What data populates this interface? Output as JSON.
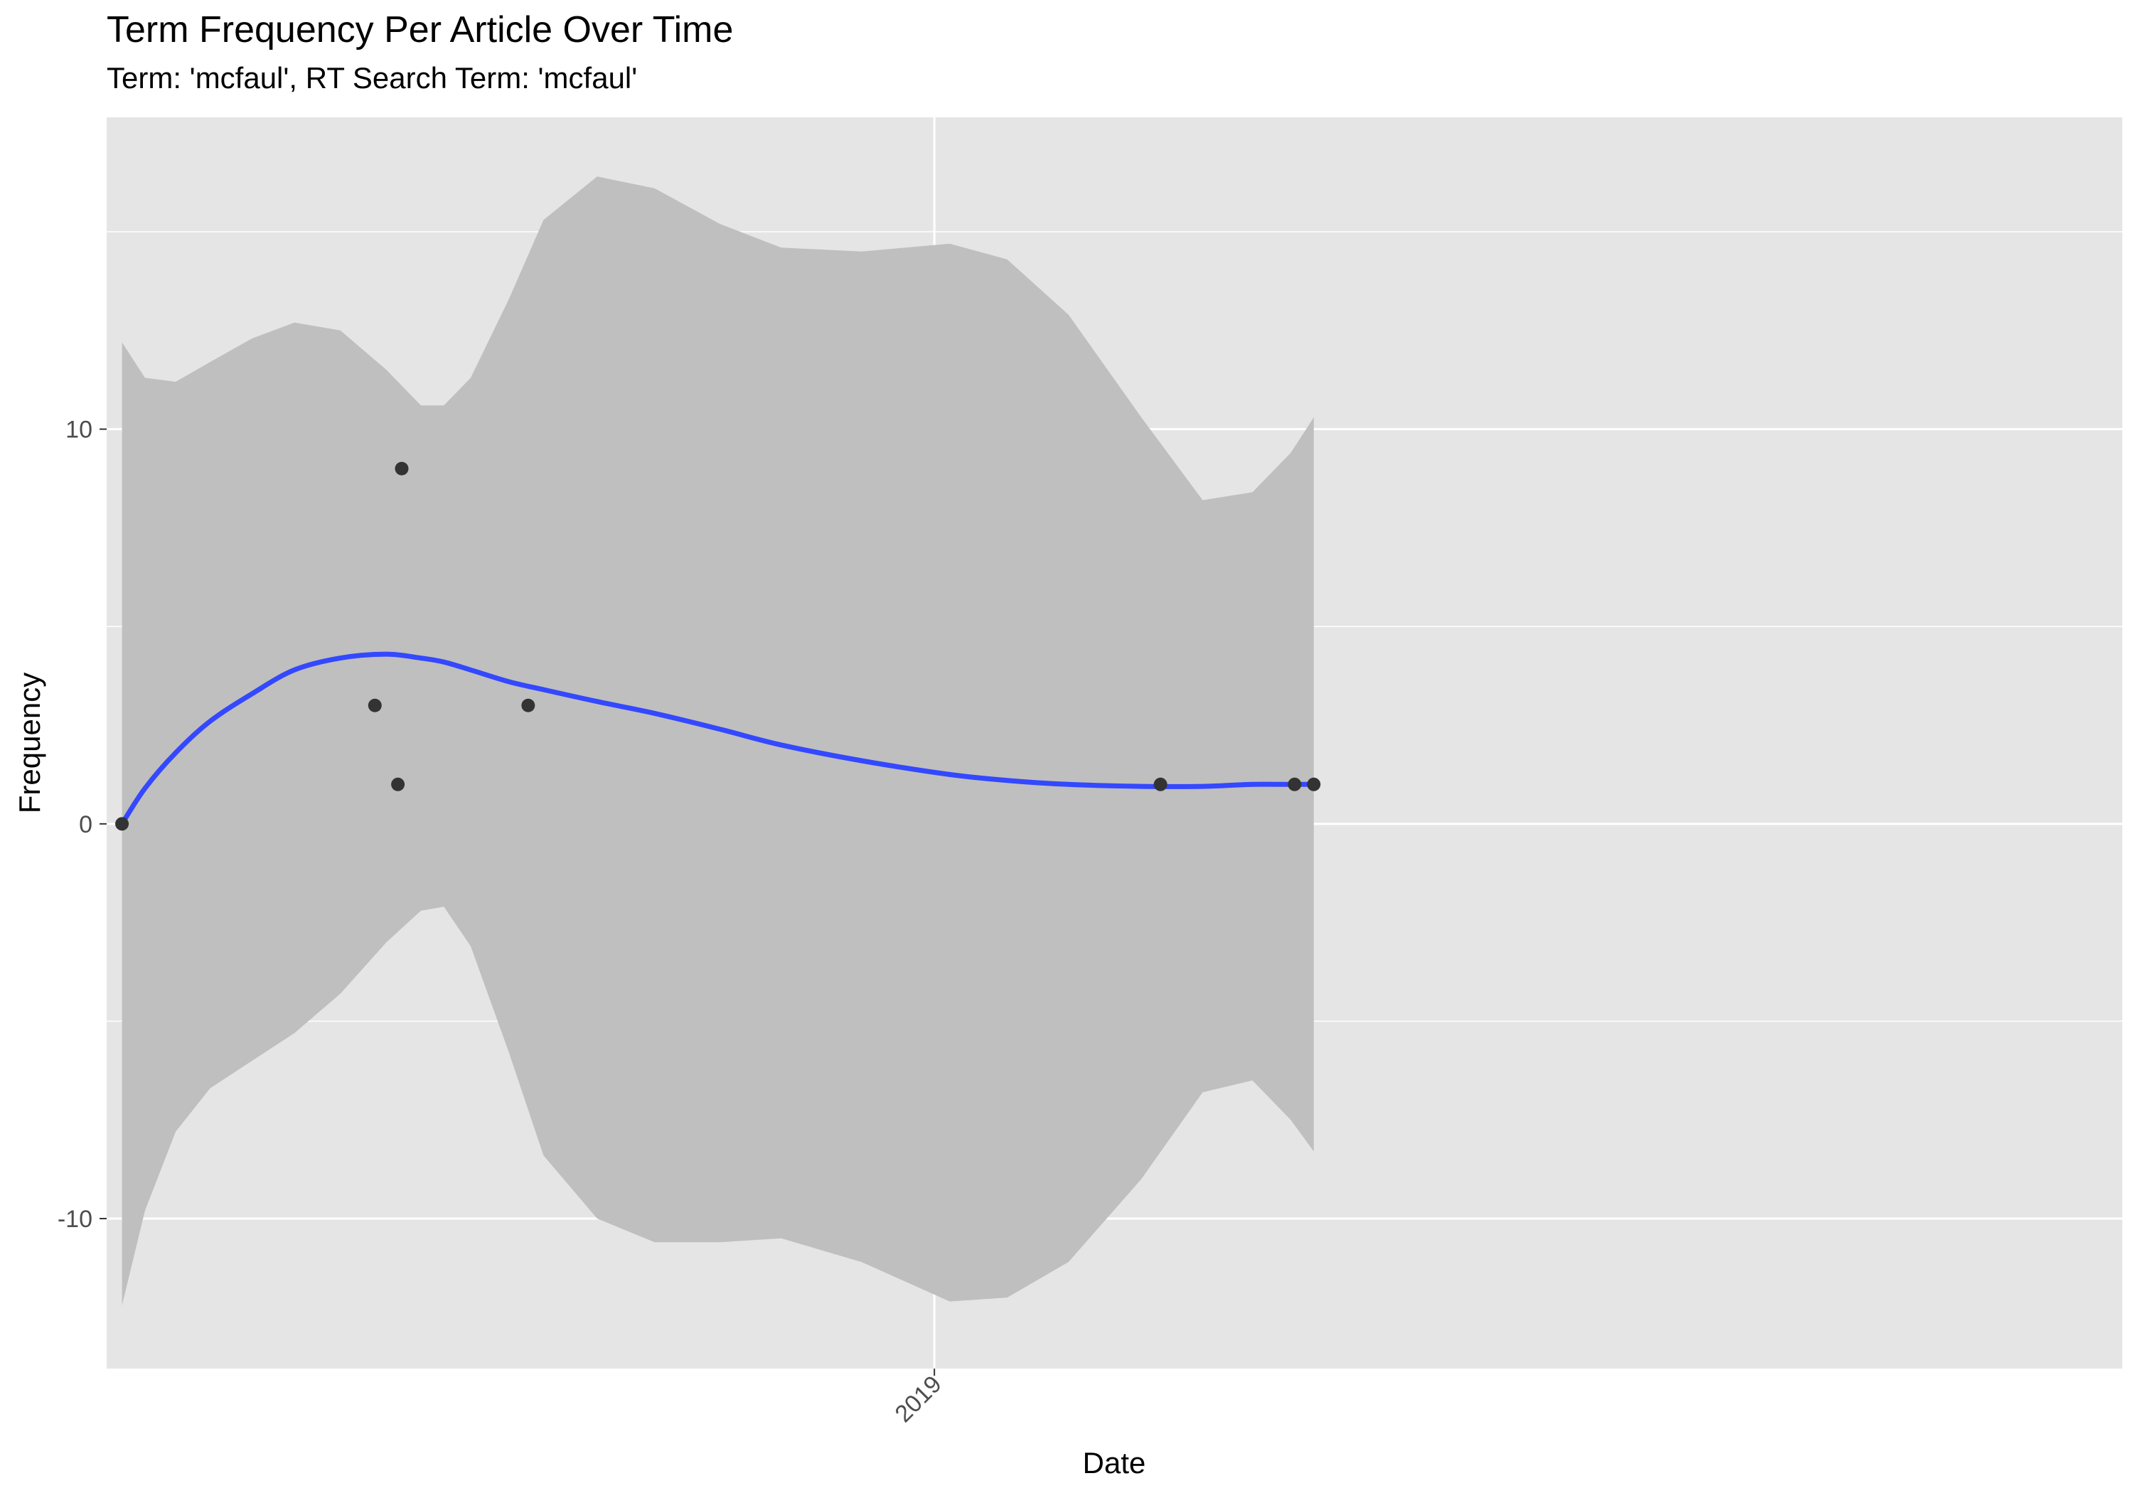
{
  "chart_data": {
    "type": "scatter",
    "title": "Term Frequency Per Article Over Time",
    "subtitle": "Term: 'mcfaul', RT Search Term: 'mcfaul'",
    "xlabel": "Date",
    "ylabel": "Frequency",
    "x_axis_type": "date",
    "x_ticks": [
      {
        "value": "2019-01-01",
        "label": "2019"
      }
    ],
    "y_ticks": [
      -10,
      0,
      10
    ],
    "y_minor_breaks": [
      -5,
      5,
      15
    ],
    "xlim": [
      "2018-05-30",
      "2019-11-07"
    ],
    "ylim": [
      -13.8,
      17.9
    ],
    "grid": true,
    "legend": "none",
    "colors": {
      "panel_background": "#e5e5e5",
      "grid": "#ffffff",
      "points": "#333333",
      "smooth_line": "#3348ff",
      "confidence_band": "#bfbfbf"
    },
    "points": [
      {
        "x": "2018-06-03",
        "y": 0
      },
      {
        "x": "2018-08-08",
        "y": 3
      },
      {
        "x": "2018-08-14",
        "y": 1
      },
      {
        "x": "2018-08-15",
        "y": 9
      },
      {
        "x": "2018-09-17",
        "y": 3
      },
      {
        "x": "2019-03-01",
        "y": 1
      },
      {
        "x": "2019-04-05",
        "y": 1
      },
      {
        "x": "2019-04-10",
        "y": 1
      }
    ],
    "smooth": {
      "method": "loess",
      "se": true,
      "curve": [
        {
          "x": "2018-06-03",
          "y": 0.0,
          "lower": -12.2,
          "upper": 12.2
        },
        {
          "x": "2018-06-09",
          "y": 0.9,
          "lower": -9.8,
          "upper": 11.3
        },
        {
          "x": "2018-06-17",
          "y": 1.8,
          "lower": -7.8,
          "upper": 11.2
        },
        {
          "x": "2018-06-26",
          "y": 2.6,
          "lower": -6.7,
          "upper": 11.7
        },
        {
          "x": "2018-07-07",
          "y": 3.3,
          "lower": -6.0,
          "upper": 12.3
        },
        {
          "x": "2018-07-18",
          "y": 3.9,
          "lower": -5.3,
          "upper": 12.7
        },
        {
          "x": "2018-07-30",
          "y": 4.2,
          "lower": -4.3,
          "upper": 12.5
        },
        {
          "x": "2018-08-11",
          "y": 4.3,
          "lower": -3.0,
          "upper": 11.5
        },
        {
          "x": "2018-08-20",
          "y": 4.2,
          "lower": -2.2,
          "upper": 10.6
        },
        {
          "x": "2018-08-26",
          "y": 4.1,
          "lower": -2.1,
          "upper": 10.6
        },
        {
          "x": "2018-09-02",
          "y": 3.9,
          "lower": -3.1,
          "upper": 11.3
        },
        {
          "x": "2018-09-12",
          "y": 3.6,
          "lower": -5.8,
          "upper": 13.3
        },
        {
          "x": "2018-09-21",
          "y": 3.4,
          "lower": -8.4,
          "upper": 15.3
        },
        {
          "x": "2018-10-05",
          "y": 3.1,
          "lower": -10.0,
          "upper": 16.4
        },
        {
          "x": "2018-10-20",
          "y": 2.8,
          "lower": -10.6,
          "upper": 16.1
        },
        {
          "x": "2018-11-06",
          "y": 2.4,
          "lower": -10.6,
          "upper": 15.2
        },
        {
          "x": "2018-11-22",
          "y": 2.0,
          "lower": -10.5,
          "upper": 14.6
        },
        {
          "x": "2018-12-13",
          "y": 1.6,
          "lower": -11.1,
          "upper": 14.5
        },
        {
          "x": "2019-01-05",
          "y": 1.25,
          "lower": -12.1,
          "upper": 14.7
        },
        {
          "x": "2019-01-20",
          "y": 1.1,
          "lower": -12.0,
          "upper": 14.3
        },
        {
          "x": "2019-02-05",
          "y": 1.0,
          "lower": -11.1,
          "upper": 12.9
        },
        {
          "x": "2019-02-24",
          "y": 0.95,
          "lower": -9.0,
          "upper": 10.3
        },
        {
          "x": "2019-03-12",
          "y": 0.95,
          "lower": -6.8,
          "upper": 8.2
        },
        {
          "x": "2019-03-25",
          "y": 1.0,
          "lower": -6.5,
          "upper": 8.4
        },
        {
          "x": "2019-04-04",
          "y": 1.0,
          "lower": -7.5,
          "upper": 9.4
        },
        {
          "x": "2019-04-10",
          "y": 1.0,
          "lower": -8.3,
          "upper": 10.3
        }
      ]
    }
  }
}
